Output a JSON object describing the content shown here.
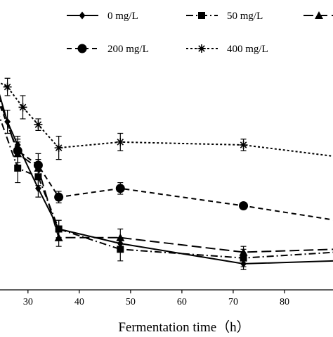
{
  "chart_data": {
    "type": "line",
    "xlabel": "Fermentation time（h）",
    "ylabel": "",
    "title": "",
    "xlim": [
      24,
      90
    ],
    "ylim": [
      0,
      1
    ],
    "x_ticks": [
      30,
      40,
      50,
      60,
      70,
      80
    ],
    "grid": false,
    "legend_placement": "top",
    "series": [
      {
        "name": "0 mg/L",
        "marker": "diamond",
        "dash": "solid",
        "x": [
          24,
          26,
          28,
          32,
          36,
          48,
          72,
          90
        ],
        "y": [
          0.7,
          0.58,
          0.5,
          0.35,
          0.21,
          0.16,
          0.09,
          0.1
        ],
        "err": [
          0.02,
          0.04,
          0.03,
          0.03,
          0.03,
          0.02,
          0.02,
          0.0
        ]
      },
      {
        "name": "50 mg/L",
        "marker": "square",
        "dash": "dashdot",
        "x": [
          24,
          28,
          32,
          36,
          48,
          72,
          90
        ],
        "y": [
          0.62,
          0.42,
          0.39,
          0.21,
          0.14,
          0.11,
          0.13
        ],
        "err": [
          0.03,
          0.05,
          0.03,
          0.03,
          0.04,
          0.03,
          0.0
        ]
      },
      {
        "name": "",
        "marker": "triangle",
        "dash": "longdash",
        "x": [
          24,
          28,
          32,
          36,
          48,
          72,
          90
        ],
        "y": [
          0.68,
          0.47,
          0.42,
          0.18,
          0.18,
          0.13,
          0.14
        ],
        "err": [
          0.03,
          0.04,
          0.03,
          0.03,
          0.03,
          0.02,
          0.0
        ]
      },
      {
        "name": "200 mg/L",
        "marker": "circle",
        "dash": "dash",
        "x": [
          24,
          28,
          32,
          36,
          48,
          72,
          90
        ],
        "y": [
          0.66,
          0.48,
          0.43,
          0.32,
          0.35,
          0.29,
          0.24
        ],
        "err": [
          0.03,
          0.04,
          0.04,
          0.02,
          0.02,
          0.01,
          0.0
        ]
      },
      {
        "name": "400 mg/L",
        "marker": "star",
        "dash": "dot",
        "x": [
          24,
          26,
          29,
          32,
          36,
          48,
          72,
          90
        ],
        "y": [
          0.72,
          0.7,
          0.63,
          0.57,
          0.49,
          0.51,
          0.5,
          0.46
        ],
        "err": [
          0.02,
          0.03,
          0.04,
          0.02,
          0.04,
          0.03,
          0.02,
          0.0
        ]
      }
    ]
  }
}
